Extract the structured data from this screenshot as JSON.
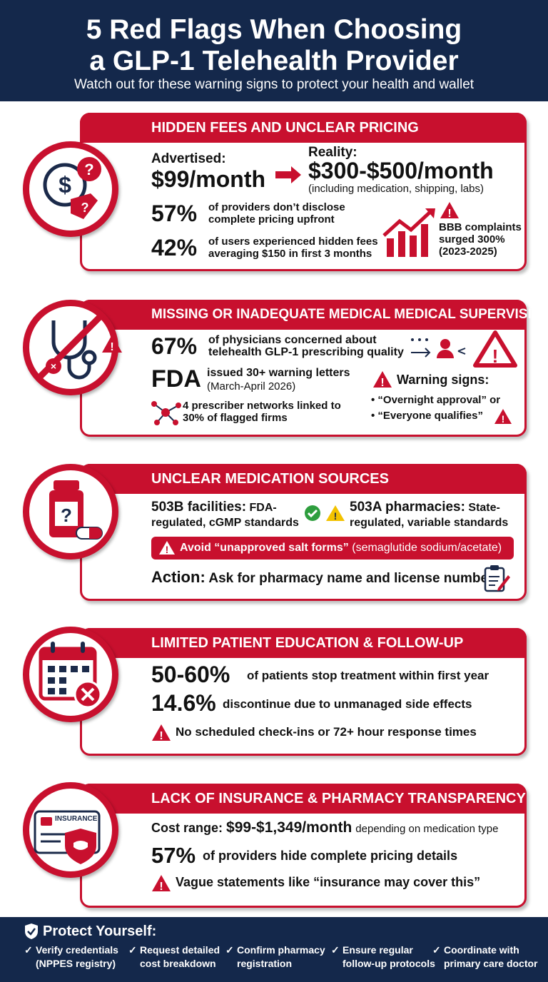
{
  "header": {
    "title_lines": [
      "5 Red Flags When Choosing",
      "a GLP-1 Telehealth Provider"
    ],
    "subtitle": "Watch out for these warning signs to protect your health and wallet"
  },
  "sections": [
    {
      "title": "HIDDEN FEES AND UNCLEAR PRICING",
      "advertised_label": "Advertised:",
      "advertised_value": "$99/month",
      "reality_label": "Reality:",
      "reality_value": "$300-$500/month",
      "reality_note": "(including medication, shipping, labs)",
      "stats": [
        {
          "value": "57%",
          "text": "of providers don’t disclose complete pricing upfront"
        },
        {
          "value": "42%",
          "text": "of users experienced hidden fees averaging $150 in first 3 months"
        }
      ],
      "side_note": "BBB complaints surged 300% (2023-2025)"
    },
    {
      "title": "MISSING OR INADEQUATE MEDICAL MEDICAL SUPERVISION",
      "stat": {
        "value": "67%",
        "text": "of physicians concerned about telehealth GLP-1 prescribing quality"
      },
      "fda": {
        "label": "FDA",
        "text": "issued 30+ warning letters",
        "date": "(March-April 2026)"
      },
      "network_note": "4 prescriber networks linked to 30% of flagged firms",
      "warning_title": "Warning signs:",
      "warning_items": [
        "“Overnight approval” or",
        "“Everyone qualifies”"
      ]
    },
    {
      "title": "UNCLEAR MEDICATION SOURCES",
      "left": {
        "label": "503B facilities:",
        "text": "FDA-regulated, cGMP standards"
      },
      "right": {
        "label": "503A pharmacies:",
        "text": "State-regulated, variable standards"
      },
      "alert": {
        "text": "Avoid “unapproved salt forms”",
        "note": "(semaglutide sodium/acetate)"
      },
      "action": {
        "label": "Action:",
        "text": "Ask for pharmacy name and license number"
      }
    },
    {
      "title": "LIMITED PATIENT EDUCATION & FOLLOW-UP",
      "stats": [
        {
          "value": "50-60%",
          "text": "of patients stop treatment within first year"
        },
        {
          "value": "14.6%",
          "text": "discontinue due to unmanaged side effects"
        }
      ],
      "alert": "No scheduled check-ins or 72+ hour response times"
    },
    {
      "title": "LACK OF INSURANCE & PHARMACY TRANSPARENCY",
      "icon_label": "INSURANCE",
      "cost": {
        "label": "Cost range:",
        "value": "$99-$1,349/month",
        "note": "depending on medication type"
      },
      "stat": {
        "value": "57%",
        "text": "of providers hide complete pricing details"
      },
      "alert": "Vague statements like “insurance may cover this”"
    }
  ],
  "footer": {
    "title": "Protect Yourself:",
    "items": [
      "Verify credentials (NPPES registry)",
      "Request detailed cost breakdown",
      "Confirm pharmacy registration",
      "Ensure regular follow-up protocols",
      "Coordinate with primary care doctor"
    ]
  }
}
